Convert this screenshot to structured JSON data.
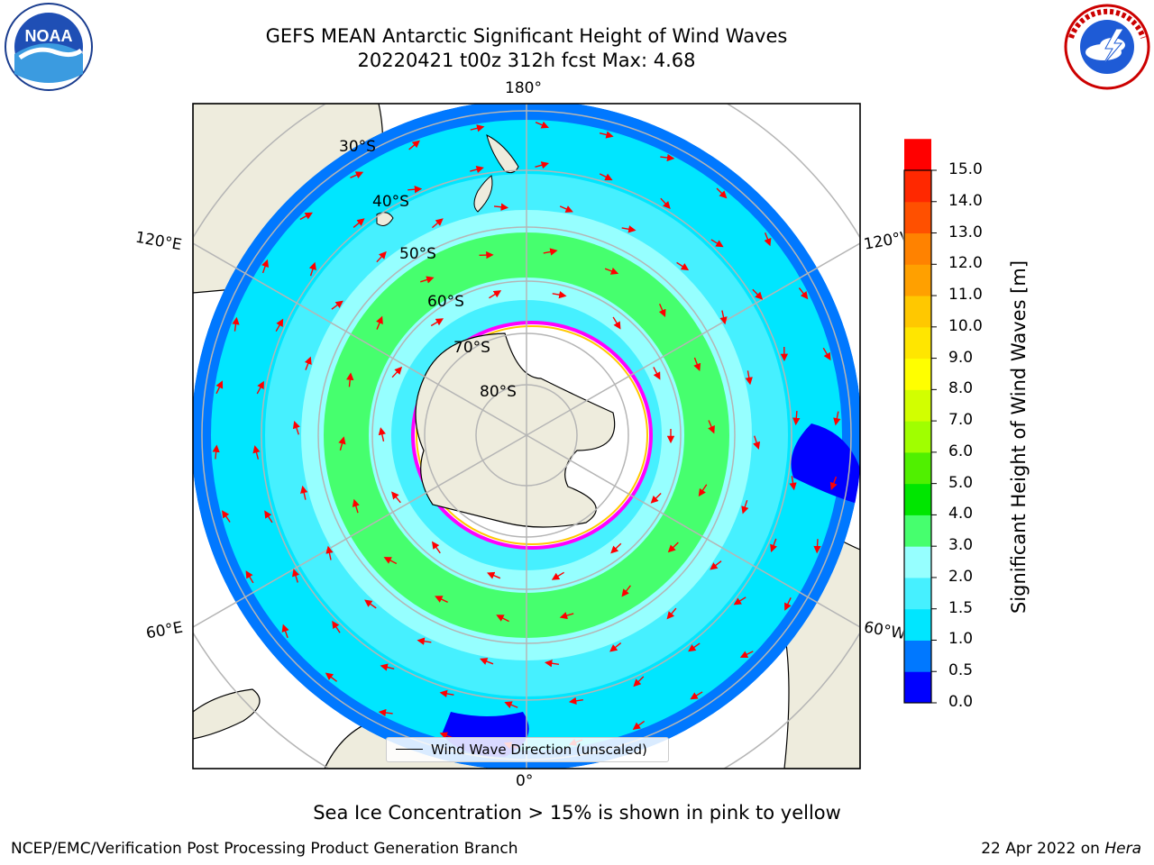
{
  "header": {
    "title": "GEFS MEAN Antarctic Significant Height of Wind Waves",
    "subtitle": "20220421 t00z 312h fcst   Max: 4.68"
  },
  "map": {
    "projection": "south-polar-stereographic",
    "longitude_labels": [
      "180°",
      "120°E",
      "120°W",
      "60°E",
      "60°W",
      "0°"
    ],
    "latitude_labels": [
      "30°S",
      "40°S",
      "50°S",
      "60°S",
      "70°S",
      "80°S"
    ],
    "gridlines": true,
    "land_color": "#eeecdd",
    "ice_edge_colors": [
      "#ff00ff",
      "#ffc800",
      "#ffff00"
    ],
    "legend": {
      "label": "Wind Wave Direction (unscaled)",
      "placement": "bottom-center"
    },
    "arrow_color": "#ff0000"
  },
  "colorbar": {
    "label": "Significant Height of Wind Waves [m]",
    "ticks": [
      "15.0",
      "14.0",
      "13.0",
      "12.0",
      "11.0",
      "10.0",
      "9.0",
      "8.0",
      "7.0",
      "6.0",
      "5.0",
      "4.0",
      "3.0",
      "2.0",
      "1.5",
      "1.0",
      "0.5",
      "0.0"
    ],
    "colors": [
      "#0000ff",
      "#0078ff",
      "#00e6ff",
      "#46f0ff",
      "#96ffff",
      "#46ff6e",
      "#00e600",
      "#50f000",
      "#a0ff00",
      "#d2ff00",
      "#ffff00",
      "#ffe600",
      "#ffc800",
      "#ffa000",
      "#ff8200",
      "#ff5000",
      "#ff2800",
      "#ff0000"
    ]
  },
  "logos": {
    "noaa": {
      "text": "NOAA"
    }
  },
  "note": "Sea Ice Concentration > 15% is shown in pink to yellow",
  "footer": {
    "left": "NCEP/EMC/Verification Post Processing Product Generation Branch",
    "right_date": "22 Apr 2022 on ",
    "right_machine": "Hera"
  }
}
